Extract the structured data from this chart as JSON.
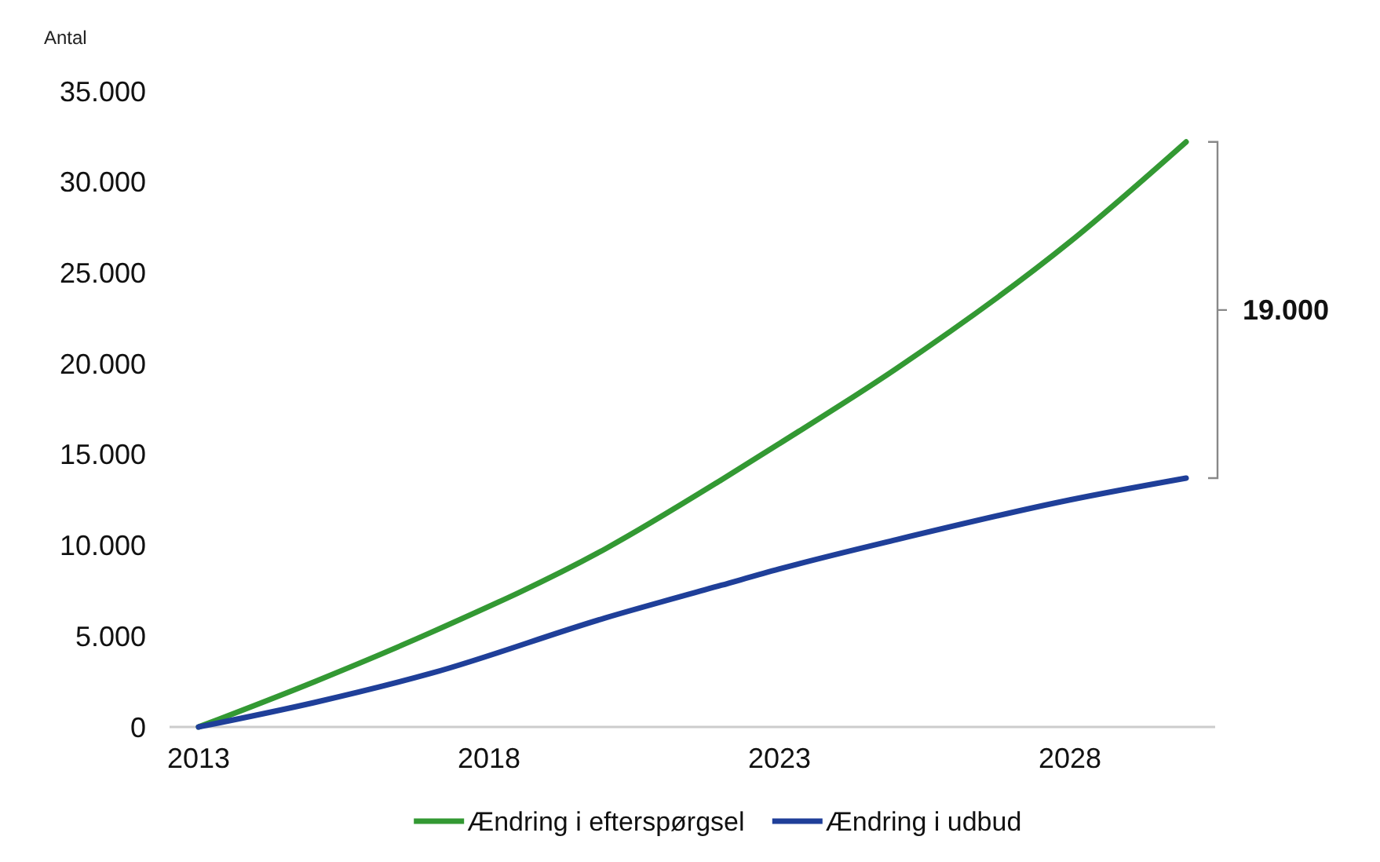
{
  "chart_data": {
    "type": "line",
    "ylabel": "Antal",
    "x": [
      2013,
      2015,
      2017,
      2020,
      2022,
      2023,
      2025,
      2028,
      2030
    ],
    "xlim": [
      2012.5,
      2030.5
    ],
    "xticks": [
      2013,
      2018,
      2023,
      2028
    ],
    "ylim": [
      0,
      35000
    ],
    "yticks": [
      {
        "value": 0,
        "label": "0"
      },
      {
        "value": 5000,
        "label": "5.000"
      },
      {
        "value": 10000,
        "label": "10.000"
      },
      {
        "value": 15000,
        "label": "15.000"
      },
      {
        "value": 20000,
        "label": "20.000"
      },
      {
        "value": 25000,
        "label": "25.000"
      },
      {
        "value": 30000,
        "label": "30.000"
      },
      {
        "value": 35000,
        "label": "35.000"
      }
    ],
    "series": [
      {
        "name": "Ændring i efterspørgsel",
        "color": "#339933",
        "values": [
          0,
          2500,
          5200,
          9800,
          13600,
          15600,
          19700,
          26700,
          32200
        ]
      },
      {
        "name": "Ændring i udbud",
        "color": "#1f3f99",
        "values": [
          0,
          1350,
          2950,
          6000,
          7800,
          8700,
          10300,
          12500,
          13700
        ]
      }
    ],
    "annotations": [
      "19.000"
    ],
    "grid": false,
    "legend": "bottom",
    "marker": "none",
    "line_style": "solid"
  }
}
